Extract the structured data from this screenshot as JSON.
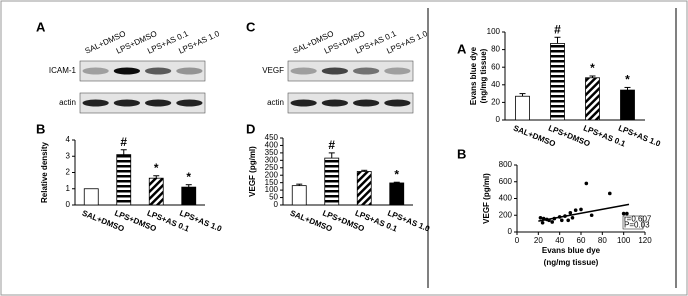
{
  "blots": [
    {
      "panel": "A",
      "rows": [
        "ICAM-1",
        "actin"
      ],
      "lanes": [
        "SAL+DMSO",
        "LPS+DMSO",
        "LPS+AS 0.1",
        "LPS+AS 1.0"
      ]
    },
    {
      "panel": "C",
      "rows": [
        "VEGF",
        "actin"
      ],
      "lanes": [
        "SAL+DMSO",
        "LPS+DMSO",
        "LPS+AS 0.1",
        "LPS+AS 1.0"
      ]
    }
  ],
  "chart_data": [
    {
      "type": "bar",
      "panel": "B",
      "ylabel": [
        "Relative density"
      ],
      "categories": [
        "SAL+DMSO",
        "LPS+DMSO",
        "LPS+AS 0.1",
        "LPS+AS 1.0"
      ],
      "values": [
        1.0,
        3.1,
        1.65,
        1.1
      ],
      "errors": [
        0,
        0.3,
        0.15,
        0.15
      ],
      "annotations": [
        null,
        "#",
        "*",
        "*"
      ],
      "patterns": [
        "none",
        "horizontal",
        "diagonal",
        "solid"
      ],
      "color": "#000000",
      "ylim": [
        0,
        4
      ],
      "yticks": [
        0,
        1,
        2,
        3,
        4
      ]
    },
    {
      "type": "bar",
      "panel": "D",
      "ylabel": [
        "VEGF (pg/ml)"
      ],
      "categories": [
        "SAL+DMSO",
        "LPS+DMSO",
        "LPS+AS 0.1",
        "LPS+AS 1.0"
      ],
      "values": [
        130,
        315,
        225,
        148
      ],
      "errors": [
        10,
        35,
        8,
        5
      ],
      "annotations": [
        null,
        "#",
        null,
        "*"
      ],
      "patterns": [
        "none",
        "horizontal",
        "diagonal",
        "solid"
      ],
      "color": "#000000",
      "ylim": [
        0,
        450
      ],
      "yticks": [
        0,
        50,
        100,
        150,
        200,
        250,
        300,
        350,
        400,
        450
      ]
    },
    {
      "type": "bar",
      "panel": "A",
      "ylabel": [
        "Evans blue dye",
        "(ng/mg tissue)"
      ],
      "categories": [
        "SAL+DMSO",
        "LPS+DMSO",
        "LPS+AS 0.1",
        "LPS+AS 1.0"
      ],
      "values": [
        27,
        87,
        48,
        34
      ],
      "errors": [
        3,
        7,
        2,
        3
      ],
      "annotations": [
        null,
        "#",
        "*",
        "*"
      ],
      "patterns": [
        "none",
        "horizontal",
        "diagonal",
        "solid"
      ],
      "color": "#000000",
      "ylim": [
        0,
        100
      ],
      "yticks": [
        0,
        20,
        40,
        60,
        80,
        100
      ]
    },
    {
      "type": "scatter",
      "panel": "B",
      "ylabel": [
        "VEGF (pg/ml)"
      ],
      "xlabel": [
        "Evans blue dye",
        "(ng/mg tissue)"
      ],
      "series": [
        {
          "color": "#000000",
          "x": [
            22,
            24,
            25,
            28,
            30,
            33,
            35,
            40,
            42,
            45,
            48,
            50,
            52,
            55,
            60,
            65,
            70,
            87,
            100,
            103
          ],
          "values": [
            170,
            110,
            160,
            150,
            140,
            120,
            160,
            180,
            140,
            190,
            140,
            230,
            170,
            260,
            270,
            580,
            200,
            460,
            220,
            220
          ]
        }
      ],
      "trend": {
        "x": [
          20,
          105
        ],
        "values": [
          130,
          330
        ]
      },
      "stats": [
        "r=0.607",
        "P=0.03"
      ],
      "xlim": [
        0,
        120
      ],
      "xticks": [
        0,
        20,
        40,
        60,
        80,
        100,
        120
      ],
      "ylim": [
        0,
        800
      ],
      "yticks": [
        0,
        200,
        400,
        600,
        800
      ]
    }
  ]
}
